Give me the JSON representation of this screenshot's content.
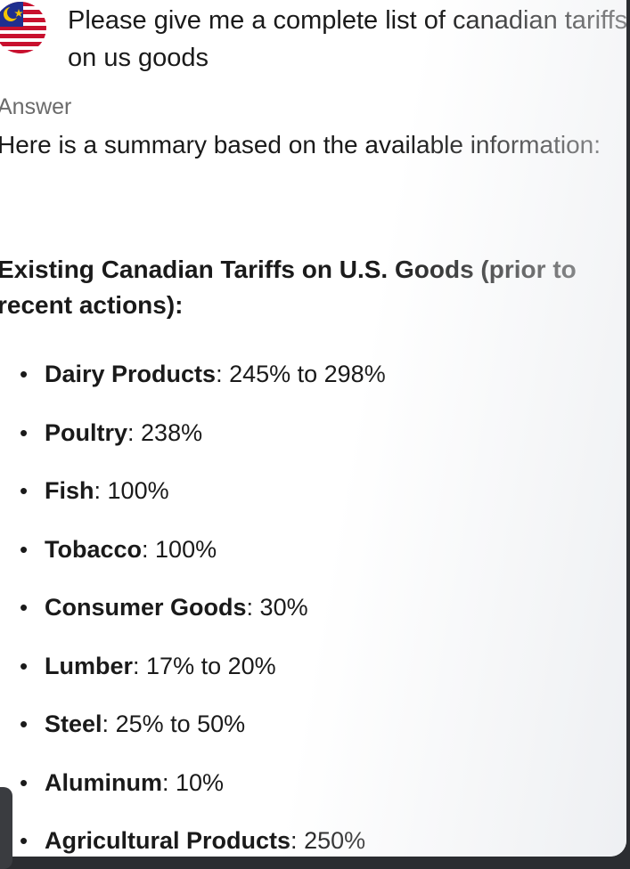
{
  "colors": {
    "background": "#2b2d31",
    "card": "#ffffff",
    "text": "#1a1a1a",
    "muted": "#6b6b6b",
    "flag_red": "#c8102e",
    "flag_blue": "#1f2f8f",
    "flag_yellow": "#f4c400"
  },
  "question": {
    "avatar_icon": "flag-icon",
    "text": "Please give me a complete list of canadian tariffs on us goods"
  },
  "answer": {
    "label": "Answer",
    "intro": "Here is a summary based on the available information:",
    "heading": "Existing Canadian Tariffs on U.S. Goods (prior to recent actions):",
    "items": [
      {
        "name": "Dairy Products",
        "rate": "245% to 298%"
      },
      {
        "name": "Poultry",
        "rate": "238%"
      },
      {
        "name": "Fish",
        "rate": "100%"
      },
      {
        "name": "Tobacco",
        "rate": "100%"
      },
      {
        "name": "Consumer Goods",
        "rate": "30%"
      },
      {
        "name": "Lumber",
        "rate": "17% to 20%"
      },
      {
        "name": "Steel",
        "rate": "25% to 50%"
      },
      {
        "name": "Aluminum",
        "rate": "10%"
      },
      {
        "name": "Agricultural Products",
        "rate": "250%"
      }
    ],
    "bullet": "•",
    "separator": ": "
  }
}
